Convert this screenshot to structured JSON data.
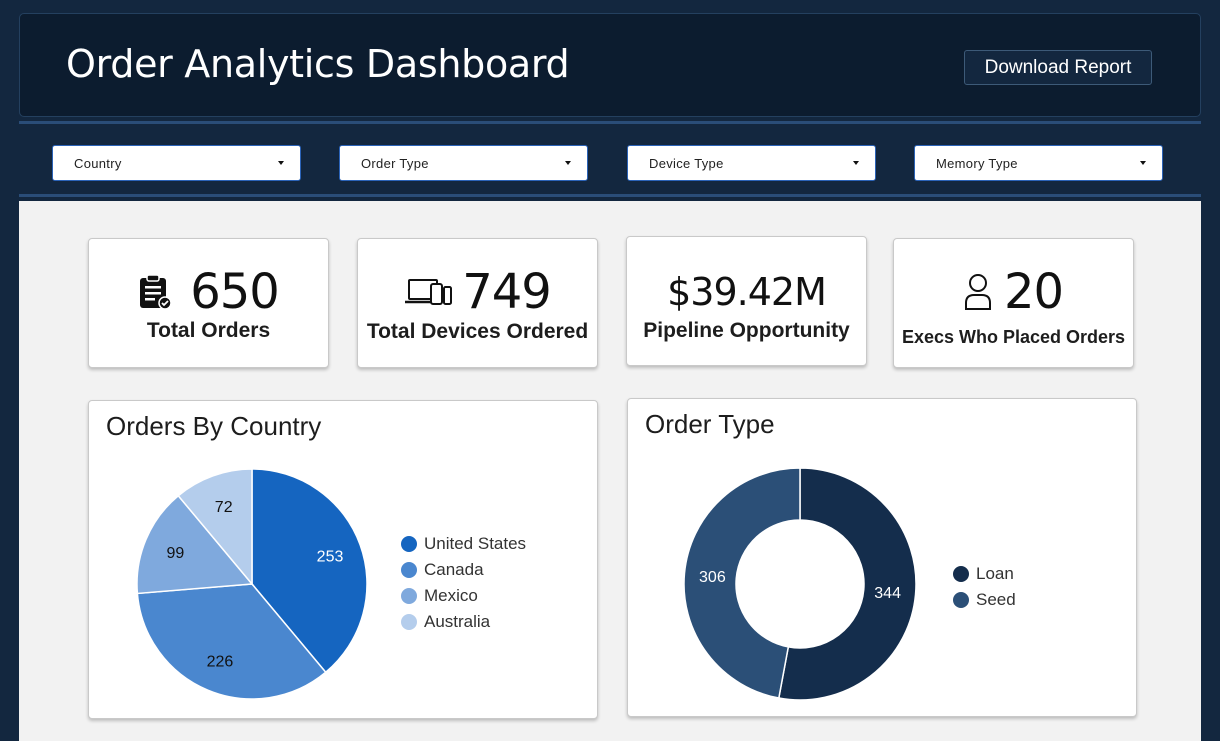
{
  "header": {
    "title": "Order Analytics Dashboard",
    "download_label": "Download Report"
  },
  "filters": [
    {
      "label": "Country"
    },
    {
      "label": "Order Type"
    },
    {
      "label": "Device Type"
    },
    {
      "label": "Memory Type"
    }
  ],
  "kpis": [
    {
      "icon": "clipboard-check-icon",
      "value": "650",
      "label": "Total Orders"
    },
    {
      "icon": "devices-icon",
      "value": "749",
      "label": "Total Devices Ordered"
    },
    {
      "icon": "",
      "value": "$39.42M",
      "label": "Pipeline Opportunity"
    },
    {
      "icon": "user-icon",
      "value": "20",
      "label": "Execs Who Placed Orders"
    }
  ],
  "chart_data": [
    {
      "type": "pie",
      "title": "Orders By Country",
      "categories": [
        "United States",
        "Canada",
        "Mexico",
        "Australia"
      ],
      "values": [
        253,
        226,
        99,
        72
      ],
      "colors": [
        "#1565c0",
        "#4a87cf",
        "#7fa9dd",
        "#b4cdec"
      ],
      "label_colors": [
        "#ffffff",
        "#111111",
        "#111111",
        "#111111"
      ],
      "legend_position": "right"
    },
    {
      "type": "donut",
      "title": "Order Type",
      "categories": [
        "Loan",
        "Seed"
      ],
      "values": [
        344,
        306
      ],
      "colors": [
        "#142d4c",
        "#2b4f77"
      ],
      "label_colors": [
        "#ffffff",
        "#ffffff"
      ],
      "legend_position": "right"
    }
  ]
}
